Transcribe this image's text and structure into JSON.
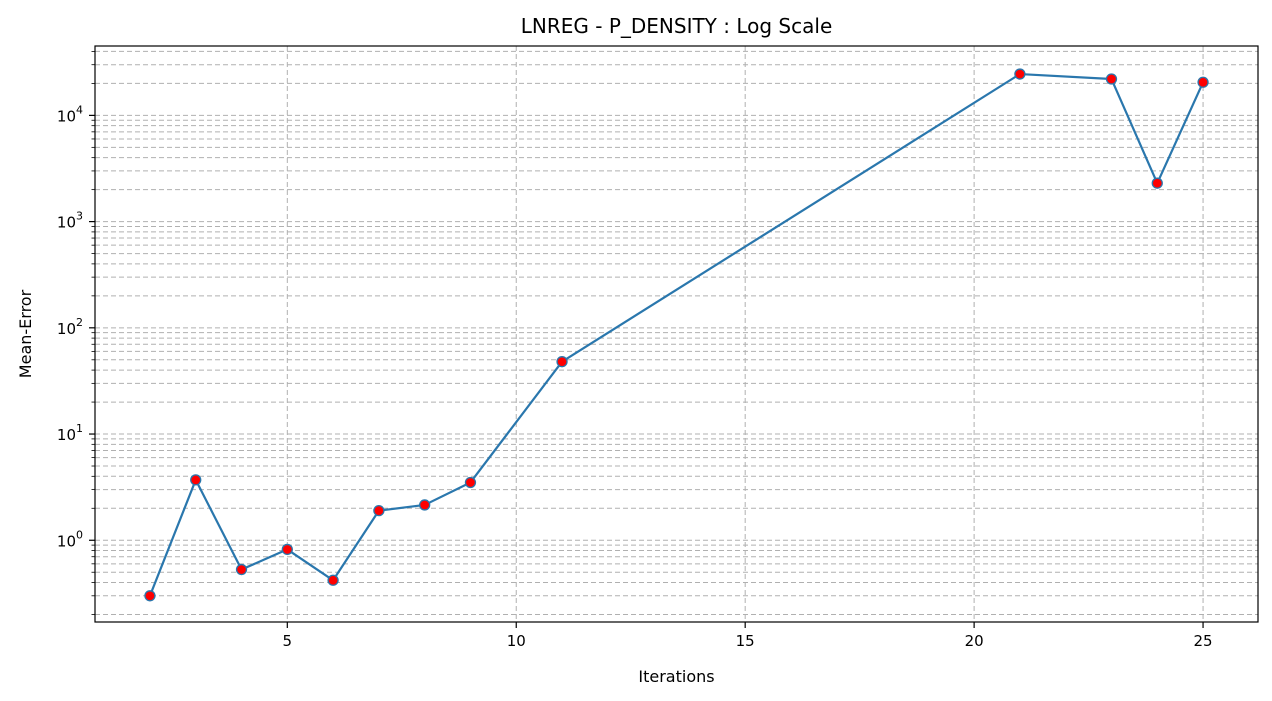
{
  "chart_data": {
    "type": "line",
    "title": "LNREG - P_DENSITY : Log Scale",
    "xlabel": "Iterations",
    "ylabel": "Mean-Error",
    "yscale": "log",
    "xlim": [
      0.8,
      26.2
    ],
    "ylim": [
      0.17,
      45000
    ],
    "grid": "both-dashed",
    "x_ticks": [
      5,
      10,
      15,
      20,
      25
    ],
    "y_ticks": [
      {
        "value": 1,
        "base": "10",
        "exp": "0"
      },
      {
        "value": 10,
        "base": "10",
        "exp": "1"
      },
      {
        "value": 100,
        "base": "10",
        "exp": "2"
      },
      {
        "value": 1000,
        "base": "10",
        "exp": "3"
      },
      {
        "value": 10000,
        "base": "10",
        "exp": "4"
      }
    ],
    "series": [
      {
        "line_color": "#2a77ad",
        "marker_face": "#ff0000",
        "marker_edge": "#2a77ad",
        "x": [
          2,
          3,
          4,
          5,
          6,
          7,
          8,
          9,
          11,
          21,
          23,
          24,
          25
        ],
        "y": [
          0.3,
          3.7,
          0.53,
          0.82,
          0.42,
          1.9,
          2.15,
          3.5,
          48,
          24500,
          22000,
          2300,
          20500
        ]
      }
    ]
  }
}
